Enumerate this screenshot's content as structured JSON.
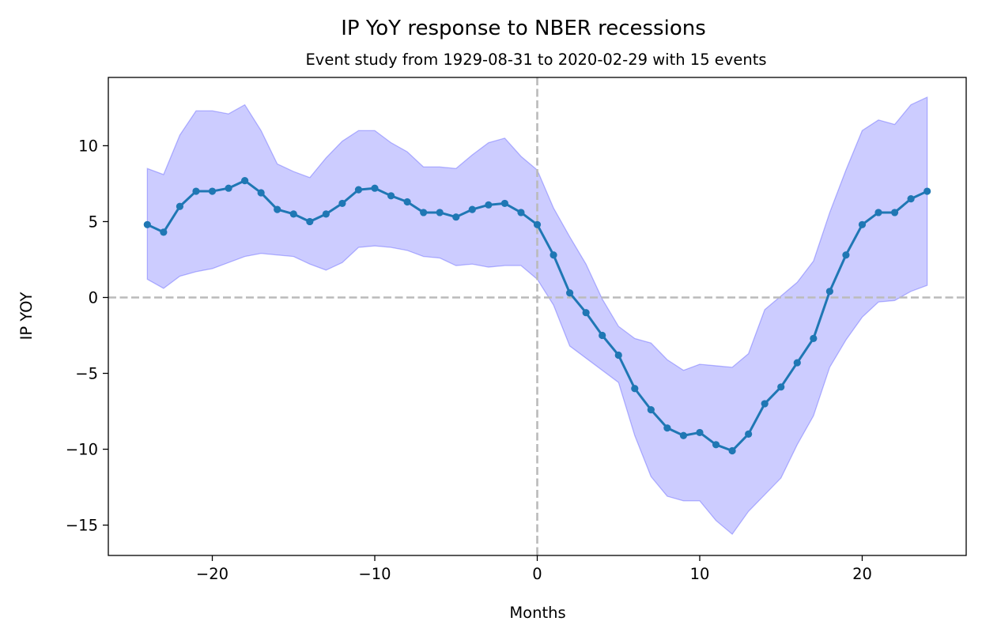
{
  "chart_data": {
    "type": "line",
    "title": "IP YoY response to NBER recessions",
    "subtitle": "Event study from 1929-08-31 to 2020-02-29 with 15 events",
    "xlabel": "Months",
    "ylabel": "IP YOY",
    "xlim": [
      -26.4,
      26.4
    ],
    "ylim": [
      -17,
      14.5
    ],
    "xticks": [
      -20,
      -10,
      0,
      10,
      20
    ],
    "yticks": [
      -15,
      -10,
      -5,
      0,
      5,
      10
    ],
    "xtick_labels": [
      "−20",
      "−10",
      "0",
      "10",
      "20"
    ],
    "ytick_labels": [
      "−15",
      "−10",
      "−5",
      "0",
      "5",
      "10"
    ],
    "grid": false,
    "reference_lines": {
      "x": 0,
      "y": 0,
      "style": "dashed",
      "color": "#bbbbbb"
    },
    "x": [
      -24,
      -23,
      -22,
      -21,
      -20,
      -19,
      -18,
      -17,
      -16,
      -15,
      -14,
      -13,
      -12,
      -11,
      -10,
      -9,
      -8,
      -7,
      -6,
      -5,
      -4,
      -3,
      -2,
      -1,
      0,
      1,
      2,
      3,
      4,
      5,
      6,
      7,
      8,
      9,
      10,
      11,
      12,
      13,
      14,
      15,
      16,
      17,
      18,
      19,
      20,
      21,
      22,
      23,
      24
    ],
    "series": [
      {
        "values": [
          4.8,
          4.3,
          6.0,
          7.0,
          7.0,
          7.2,
          7.7,
          6.9,
          5.8,
          5.5,
          5.0,
          5.5,
          6.2,
          7.1,
          7.2,
          6.7,
          6.3,
          5.6,
          5.6,
          5.3,
          5.8,
          6.1,
          6.2,
          5.6,
          4.8,
          2.8,
          0.3,
          -1.0,
          -2.5,
          -3.8,
          -6.0,
          -7.4,
          -8.6,
          -9.1,
          -8.9,
          -9.7,
          -10.1,
          -9.0,
          -7.0,
          -5.9,
          -4.3,
          -2.7,
          0.4,
          2.8,
          4.8,
          5.6,
          5.6,
          6.5,
          7.0
        ],
        "color": "#1f77b4"
      }
    ],
    "band": {
      "upper": [
        8.5,
        8.1,
        10.7,
        12.3,
        12.3,
        12.1,
        12.7,
        11.0,
        8.8,
        8.3,
        7.9,
        9.2,
        10.3,
        11.0,
        11.0,
        10.2,
        9.6,
        8.6,
        8.6,
        8.5,
        9.4,
        10.2,
        10.5,
        9.3,
        8.4,
        5.9,
        4.0,
        2.2,
        -0.1,
        -1.9,
        -2.7,
        -3.0,
        -4.1,
        -4.8,
        -4.4,
        -4.5,
        -4.6,
        -3.7,
        -0.8,
        0.1,
        1.0,
        2.4,
        5.6,
        8.4,
        11.0,
        11.7,
        11.4,
        12.7,
        13.2
      ],
      "lower": [
        1.2,
        0.6,
        1.4,
        1.7,
        1.9,
        2.3,
        2.7,
        2.9,
        2.8,
        2.7,
        2.2,
        1.8,
        2.3,
        3.3,
        3.4,
        3.3,
        3.1,
        2.7,
        2.6,
        2.1,
        2.2,
        2.0,
        2.1,
        2.1,
        1.2,
        -0.5,
        -3.2,
        -4.0,
        -4.8,
        -5.6,
        -9.1,
        -11.8,
        -13.1,
        -13.4,
        -13.4,
        -14.7,
        -15.6,
        -14.1,
        -13.0,
        -11.9,
        -9.7,
        -7.8,
        -4.6,
        -2.8,
        -1.3,
        -0.3,
        -0.2,
        0.4,
        0.8
      ],
      "color": "#0000ff",
      "opacity": 0.2
    }
  }
}
